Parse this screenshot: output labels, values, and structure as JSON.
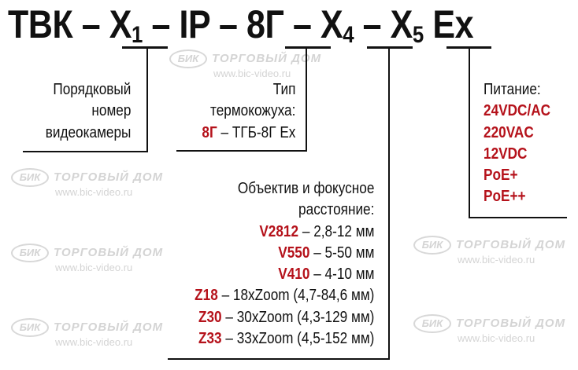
{
  "title": {
    "p1": "ТВК – X",
    "s1": "1",
    "p2": " – IP – 8Г – X",
    "s2": "4",
    "p3": " – X",
    "s3": "5",
    "p4": " Ex"
  },
  "watermark": {
    "logo": "БИК",
    "text": "ТОРГОВЫЙ ДОМ",
    "url": "www.bic-video.ru"
  },
  "x1_block": {
    "lines": [
      "Порядковый",
      "номер",
      "видеокамеры"
    ]
  },
  "housing_block": {
    "lines": [
      "Тип",
      "термокожуха:"
    ],
    "code": "8Г",
    "desc": " – ТГБ-8Г Ex"
  },
  "lens_block": {
    "heading": [
      "Объектив и фокусное",
      "расстояние:"
    ],
    "items": [
      {
        "code": "V2812",
        "desc": " – 2,8-12 мм"
      },
      {
        "code": "V550",
        "desc": " – 5-50 мм"
      },
      {
        "code": "V410",
        "desc": " – 4-10 мм"
      },
      {
        "code": "Z18",
        "desc": " – 18xZoom (4,7-84,6 мм)"
      },
      {
        "code": "Z30",
        "desc": " – 30xZoom (4,3-129 мм)"
      },
      {
        "code": "Z33",
        "desc": " – 33xZoom (4,5-152 мм)"
      }
    ]
  },
  "power_block": {
    "heading": "Питание:",
    "items": [
      "24VDC/AC",
      "220VAC",
      "12VDC",
      "PoE+",
      "PoE++"
    ]
  },
  "colors": {
    "accent": "#b5121b",
    "text": "#111111",
    "watermark": "#d4d4d4"
  }
}
